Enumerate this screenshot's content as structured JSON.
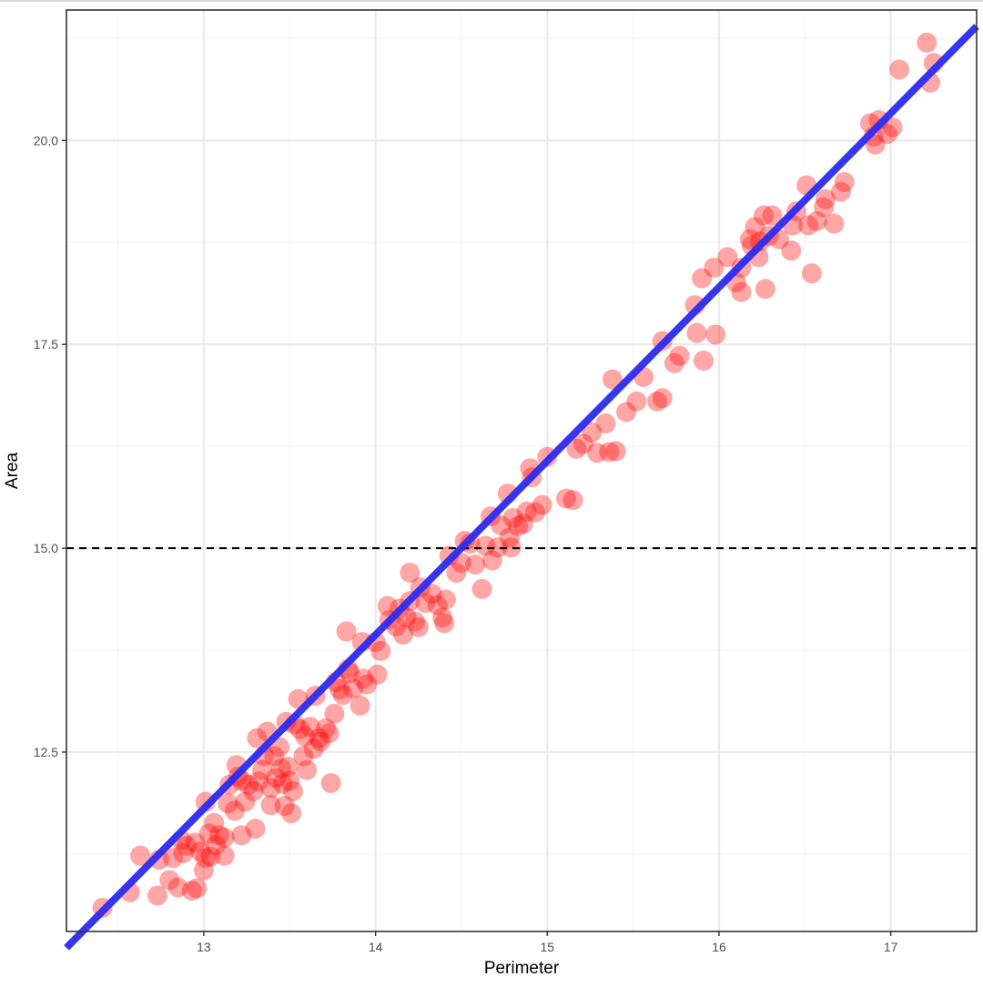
{
  "colors": {
    "points": "#ff0000",
    "fit_line": "#2b2bf0",
    "reference_line": "#000000",
    "grid_major": "#ebebeb",
    "grid_minor": "#f5f5f5",
    "panel_border": "#333333"
  },
  "chart_data": {
    "type": "scatter",
    "title": "",
    "xlabel": "Perimeter",
    "ylabel": "Area",
    "xlim": [
      12.2,
      17.5
    ],
    "ylim": [
      10.3,
      21.6
    ],
    "grid": true,
    "x_ticks": [
      13,
      14,
      15,
      16,
      17
    ],
    "x_tick_labels": [
      "13",
      "14",
      "15",
      "16",
      "17"
    ],
    "y_ticks": [
      12.5,
      15.0,
      17.5,
      20.0
    ],
    "y_tick_labels": [
      "12.5",
      "15.0",
      "17.5",
      "20.0"
    ],
    "reference_line": {
      "orientation": "horizontal",
      "y": 15.0,
      "style": "dashed"
    },
    "fit_line": {
      "type": "linear",
      "x": [
        12.2,
        17.5
      ],
      "y": [
        10.1,
        21.4
      ]
    },
    "series": [
      {
        "values": [
          [
            12.41,
            10.59
          ],
          [
            12.57,
            10.78
          ],
          [
            12.63,
            11.23
          ],
          [
            12.73,
            10.74
          ],
          [
            12.74,
            11.18
          ],
          [
            12.8,
            10.93
          ],
          [
            12.82,
            11.2
          ],
          [
            12.85,
            10.84
          ],
          [
            12.87,
            11.42
          ],
          [
            12.88,
            11.26
          ],
          [
            12.9,
            11.35
          ],
          [
            12.93,
            10.8
          ],
          [
            12.95,
            11.39
          ],
          [
            12.96,
            10.83
          ],
          [
            12.98,
            11.28
          ],
          [
            13.0,
            11.05
          ],
          [
            13.01,
            11.2
          ],
          [
            13.01,
            11.89
          ],
          [
            13.03,
            11.5
          ],
          [
            13.04,
            11.22
          ],
          [
            13.06,
            11.63
          ],
          [
            13.07,
            11.36
          ],
          [
            13.09,
            11.48
          ],
          [
            13.12,
            11.45
          ],
          [
            13.12,
            11.23
          ],
          [
            13.14,
            11.87
          ],
          [
            13.15,
            12.1
          ],
          [
            13.18,
            11.78
          ],
          [
            13.19,
            12.34
          ],
          [
            13.2,
            12.2
          ],
          [
            13.22,
            12.15
          ],
          [
            13.22,
            11.48
          ],
          [
            13.24,
            11.89
          ],
          [
            13.26,
            12.1
          ],
          [
            13.29,
            12.02
          ],
          [
            13.3,
            11.56
          ],
          [
            13.31,
            12.67
          ],
          [
            13.32,
            12.14
          ],
          [
            13.34,
            12.28
          ],
          [
            13.35,
            12.45
          ],
          [
            13.37,
            12.75
          ],
          [
            13.39,
            12.06
          ],
          [
            13.39,
            11.85
          ],
          [
            13.41,
            12.45
          ],
          [
            13.42,
            12.18
          ],
          [
            13.44,
            12.56
          ],
          [
            13.45,
            12.3
          ],
          [
            13.46,
            12.11
          ],
          [
            13.47,
            11.84
          ],
          [
            13.48,
            12.87
          ],
          [
            13.49,
            12.32
          ],
          [
            13.5,
            12.15
          ],
          [
            13.51,
            11.75
          ],
          [
            13.52,
            12.02
          ],
          [
            13.53,
            12.84
          ],
          [
            13.55,
            13.15
          ],
          [
            13.56,
            12.78
          ],
          [
            13.58,
            12.45
          ],
          [
            13.59,
            12.69
          ],
          [
            13.6,
            12.28
          ],
          [
            13.62,
            12.81
          ],
          [
            13.64,
            12.54
          ],
          [
            13.65,
            13.19
          ],
          [
            13.67,
            12.67
          ],
          [
            13.68,
            12.63
          ],
          [
            13.71,
            12.79
          ],
          [
            13.73,
            12.73
          ],
          [
            13.74,
            12.12
          ],
          [
            13.76,
            12.97
          ],
          [
            13.77,
            13.36
          ],
          [
            13.79,
            13.27
          ],
          [
            13.81,
            13.2
          ],
          [
            13.83,
            13.98
          ],
          [
            13.84,
            13.52
          ],
          [
            13.85,
            13.47
          ],
          [
            13.87,
            13.28
          ],
          [
            13.91,
            13.07
          ],
          [
            13.92,
            13.85
          ],
          [
            13.93,
            13.4
          ],
          [
            13.95,
            13.33
          ],
          [
            14.0,
            13.85
          ],
          [
            14.01,
            13.45
          ],
          [
            14.03,
            13.74
          ],
          [
            14.07,
            14.29
          ],
          [
            14.08,
            14.12
          ],
          [
            14.12,
            14.04
          ],
          [
            14.14,
            14.26
          ],
          [
            14.16,
            13.94
          ],
          [
            14.18,
            14.15
          ],
          [
            14.2,
            14.35
          ],
          [
            14.2,
            14.7
          ],
          [
            14.23,
            14.1
          ],
          [
            14.25,
            14.03
          ],
          [
            14.26,
            14.52
          ],
          [
            14.29,
            14.33
          ],
          [
            14.33,
            14.44
          ],
          [
            14.36,
            14.3
          ],
          [
            14.39,
            14.15
          ],
          [
            14.4,
            14.08
          ],
          [
            14.41,
            14.37
          ],
          [
            14.43,
            14.91
          ],
          [
            14.47,
            14.7
          ],
          [
            14.5,
            14.82
          ],
          [
            14.52,
            15.09
          ],
          [
            14.55,
            15.06
          ],
          [
            14.58,
            14.8
          ],
          [
            14.62,
            14.5
          ],
          [
            14.64,
            15.03
          ],
          [
            14.67,
            15.39
          ],
          [
            14.68,
            14.85
          ],
          [
            14.71,
            15.01
          ],
          [
            14.73,
            15.28
          ],
          [
            14.77,
            15.67
          ],
          [
            14.78,
            15.13
          ],
          [
            14.79,
            15.01
          ],
          [
            14.8,
            15.37
          ],
          [
            14.83,
            15.27
          ],
          [
            14.86,
            15.3
          ],
          [
            14.88,
            15.45
          ],
          [
            14.9,
            15.98
          ],
          [
            14.91,
            15.87
          ],
          [
            14.93,
            15.44
          ],
          [
            14.97,
            15.53
          ],
          [
            15.0,
            16.12
          ],
          [
            15.11,
            15.61
          ],
          [
            15.15,
            15.59
          ],
          [
            15.17,
            16.22
          ],
          [
            15.21,
            16.28
          ],
          [
            15.26,
            16.42
          ],
          [
            15.29,
            16.17
          ],
          [
            15.34,
            16.53
          ],
          [
            15.36,
            16.18
          ],
          [
            15.38,
            17.07
          ],
          [
            15.4,
            16.19
          ],
          [
            15.46,
            16.67
          ],
          [
            15.52,
            16.8
          ],
          [
            15.56,
            17.1
          ],
          [
            15.64,
            16.8
          ],
          [
            15.67,
            16.84
          ],
          [
            15.67,
            17.54
          ],
          [
            15.74,
            17.27
          ],
          [
            15.77,
            17.36
          ],
          [
            15.86,
            17.98
          ],
          [
            15.87,
            17.64
          ],
          [
            15.9,
            18.31
          ],
          [
            15.91,
            17.3
          ],
          [
            15.97,
            18.44
          ],
          [
            15.98,
            17.62
          ],
          [
            16.05,
            18.57
          ],
          [
            16.1,
            18.26
          ],
          [
            16.13,
            18.44
          ],
          [
            16.13,
            18.14
          ],
          [
            16.18,
            18.79
          ],
          [
            16.19,
            18.71
          ],
          [
            16.21,
            18.94
          ],
          [
            16.23,
            18.57
          ],
          [
            16.24,
            18.76
          ],
          [
            16.26,
            19.08
          ],
          [
            16.27,
            18.18
          ],
          [
            16.29,
            18.83
          ],
          [
            16.31,
            19.08
          ],
          [
            16.35,
            18.79
          ],
          [
            16.42,
            18.65
          ],
          [
            16.43,
            18.96
          ],
          [
            16.45,
            19.13
          ],
          [
            16.51,
            19.45
          ],
          [
            16.52,
            18.96
          ],
          [
            16.54,
            18.37
          ],
          [
            16.57,
            19.01
          ],
          [
            16.61,
            19.18
          ],
          [
            16.62,
            19.28
          ],
          [
            16.67,
            18.98
          ],
          [
            16.71,
            19.37
          ],
          [
            16.73,
            19.49
          ],
          [
            16.88,
            20.21
          ],
          [
            16.9,
            20.05
          ],
          [
            16.91,
            19.95
          ],
          [
            16.93,
            20.25
          ],
          [
            16.98,
            20.08
          ],
          [
            17.01,
            20.16
          ],
          [
            17.05,
            20.87
          ],
          [
            17.21,
            21.2
          ],
          [
            17.23,
            20.71
          ],
          [
            17.25,
            20.95
          ]
        ]
      }
    ]
  }
}
